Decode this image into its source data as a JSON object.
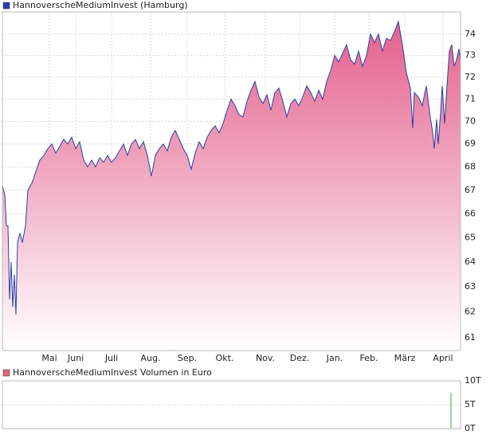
{
  "chart_data": [
    {
      "type": "area",
      "log_scale": true,
      "grid": true,
      "fill_gradient": [
        "#e4608c",
        "#ffffff"
      ],
      "series": [
        {
          "name": "HannoverscheMediumInvest (Hamburg)",
          "color": "#2840a8",
          "values": [
            67.2,
            66.8,
            65.5,
            65.5,
            62.5,
            64,
            62.2,
            63.5,
            61.9,
            64.8,
            65.2,
            64.8,
            65.5,
            67,
            67.3,
            67.8,
            68.3,
            68.5,
            68.8,
            69,
            68.6,
            68.9,
            69.2,
            69,
            69.3,
            68.8,
            69.1,
            68.3,
            68,
            68.3,
            68,
            68.4,
            68.2,
            68.5,
            68.2,
            68.4,
            68.7,
            69,
            68.5,
            69,
            69.2,
            68.8,
            69.1,
            68.5,
            67.6,
            68.5,
            68.8,
            69,
            68.7,
            69.3,
            69.6,
            69.2,
            68.8,
            68.5,
            67.9,
            68.6,
            69.1,
            68.8,
            69.3,
            69.6,
            69.8,
            69.5,
            69.9,
            70.5,
            71,
            70.7,
            70.3,
            70.2,
            70.9,
            71.4,
            71.8,
            71.1,
            70.8,
            71.2,
            70.5,
            71.3,
            71.5,
            70.9,
            70.2,
            70.8,
            71,
            70.7,
            71.1,
            71.6,
            71.3,
            70.9,
            71.4,
            71,
            71.8,
            72.3,
            73,
            72.7,
            73.1,
            73.5,
            72.8,
            72.6,
            73.2,
            72.5,
            73,
            74,
            73.6,
            74,
            73.2,
            73.8,
            73.7,
            74.1,
            74.6,
            73.5,
            72.2,
            71.5,
            69.7,
            71.3,
            71.1,
            70.7,
            71.6,
            70.2,
            69.5,
            68.8,
            70.1,
            69,
            70.4,
            71.6,
            69.9,
            71.6,
            73.2,
            73.5,
            72.5,
            72.8,
            73.3,
            72.8
          ]
        }
      ],
      "x": [
        3,
        6,
        8,
        10,
        12,
        14,
        16,
        18,
        20,
        22,
        25,
        28,
        32,
        35,
        40,
        45,
        50,
        55,
        60,
        65,
        70,
        75,
        80,
        85,
        90,
        95,
        100,
        105,
        110,
        115,
        120,
        125,
        130,
        135,
        140,
        145,
        150,
        155,
        160,
        165,
        170,
        175,
        180,
        185,
        190,
        195,
        200,
        205,
        210,
        215,
        220,
        225,
        230,
        235,
        240,
        245,
        250,
        255,
        260,
        265,
        270,
        275,
        280,
        285,
        290,
        295,
        300,
        305,
        310,
        315,
        320,
        325,
        330,
        335,
        340,
        345,
        350,
        355,
        360,
        365,
        370,
        375,
        380,
        385,
        390,
        395,
        400,
        405,
        410,
        415,
        420,
        425,
        430,
        435,
        440,
        445,
        450,
        455,
        460,
        465,
        470,
        475,
        480,
        485,
        490,
        495,
        500,
        505,
        510,
        515,
        518,
        520,
        525,
        530,
        535,
        540,
        543,
        545,
        548,
        550,
        553,
        555,
        558,
        561,
        564,
        567,
        570,
        573,
        576,
        578
      ],
      "xlim": [
        3,
        578
      ],
      "xticks": [
        {
          "value": 62,
          "label": "Mai"
        },
        {
          "value": 95,
          "label": "Juni"
        },
        {
          "value": 140,
          "label": "Juli"
        },
        {
          "value": 189,
          "label": "Aug."
        },
        {
          "value": 235,
          "label": "Sep."
        },
        {
          "value": 282,
          "label": "Okt."
        },
        {
          "value": 333,
          "label": "Nov."
        },
        {
          "value": 376,
          "label": "Dez."
        },
        {
          "value": 420,
          "label": "Jan."
        },
        {
          "value": 463,
          "label": "Feb."
        },
        {
          "value": 508,
          "label": "März"
        },
        {
          "value": 556,
          "label": "April"
        }
      ],
      "ylim": [
        60.5,
        75.05
      ],
      "yticks": [
        61,
        62,
        63,
        64,
        65,
        66,
        67,
        68,
        69,
        70,
        71,
        72,
        73,
        74
      ]
    },
    {
      "type": "bar",
      "grid": true,
      "series": [
        {
          "name": "HannoverscheMediumInvest Volumen in Euro",
          "color": "#33aa33",
          "legend_color": "#d96a7a",
          "values": [
            7.5
          ]
        }
      ],
      "x": [
        566
      ],
      "xlim": [
        3,
        578
      ],
      "ylim": [
        0,
        10
      ],
      "yticks": [
        {
          "value": 0,
          "label": "0T"
        },
        {
          "value": 5,
          "label": "5T"
        },
        {
          "value": 10,
          "label": "10T"
        }
      ]
    }
  ]
}
